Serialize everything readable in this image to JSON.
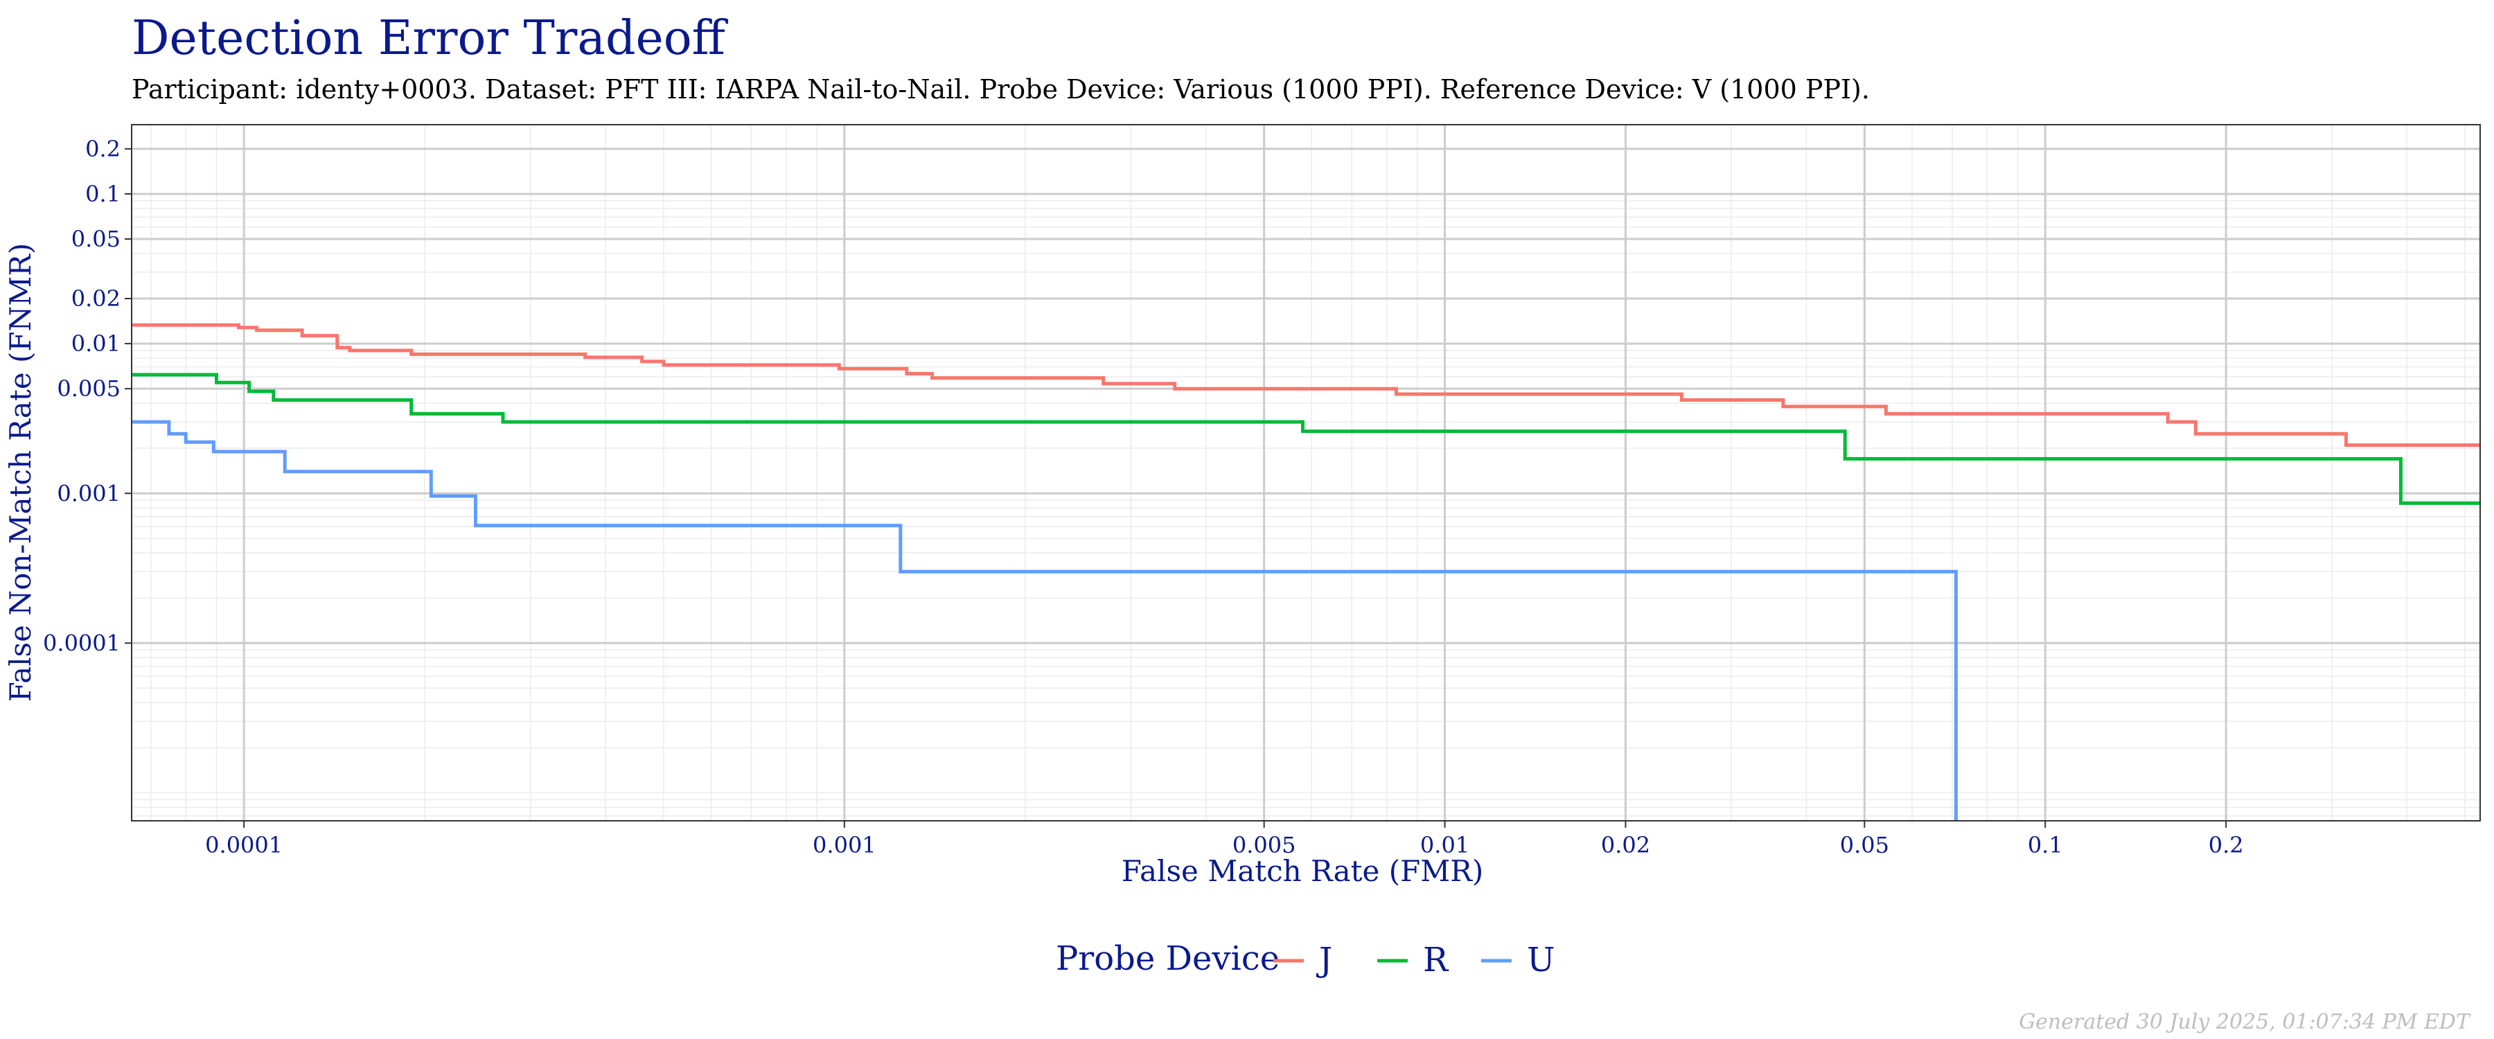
{
  "chart_data": {
    "type": "line",
    "step": true,
    "title": "Detection Error Tradeoff",
    "subtitle": "Participant: identy+0003. Dataset: PFT III: IARPA Nail-to-Nail. Probe Device: Various (1000 PPI). Reference Device: V (1000 PPI).",
    "xlabel": "False Match Rate (FMR)",
    "ylabel": "False Non-Match Rate (FNMR)",
    "xscale": "log",
    "yscale": "log",
    "xlim": [
      6.5e-05,
      0.53
    ],
    "ylim": [
      6.5e-06,
      0.29
    ],
    "xticks": [
      {
        "value": 0.0001,
        "label": "0.0001"
      },
      {
        "value": 0.001,
        "label": "0.001"
      },
      {
        "value": 0.005,
        "label": "0.005"
      },
      {
        "value": 0.01,
        "label": "0.01"
      },
      {
        "value": 0.02,
        "label": "0.02"
      },
      {
        "value": 0.05,
        "label": "0.05"
      },
      {
        "value": 0.1,
        "label": "0.1"
      },
      {
        "value": 0.2,
        "label": "0.2"
      }
    ],
    "yticks": [
      {
        "value": 0.2,
        "label": "0.2"
      },
      {
        "value": 0.1,
        "label": "0.1"
      },
      {
        "value": 0.05,
        "label": "0.05"
      },
      {
        "value": 0.02,
        "label": "0.02"
      },
      {
        "value": 0.01,
        "label": "0.01"
      },
      {
        "value": 0.005,
        "label": "0.005"
      },
      {
        "value": 0.001,
        "label": "0.001"
      },
      {
        "value": 0.0001,
        "label": "0.0001"
      }
    ],
    "grid": true,
    "legend": {
      "title": "Probe Device",
      "position": "bottom"
    },
    "series": [
      {
        "name": "J",
        "color": "#F8766D",
        "points": [
          [
            6.5e-05,
            0.0133
          ],
          [
            9.8e-05,
            0.0128
          ],
          [
            0.000105,
            0.0123
          ],
          [
            0.000125,
            0.0113
          ],
          [
            0.000143,
            0.0094
          ],
          [
            0.00015,
            0.009
          ],
          [
            0.00019,
            0.0085
          ],
          [
            0.00037,
            0.0081
          ],
          [
            0.00046,
            0.0076
          ],
          [
            0.0005,
            0.0072
          ],
          [
            0.00098,
            0.0068
          ],
          [
            0.00127,
            0.0063
          ],
          [
            0.0014,
            0.0059
          ],
          [
            0.0027,
            0.0054
          ],
          [
            0.00355,
            0.005
          ],
          [
            0.0083,
            0.0046
          ],
          [
            0.0248,
            0.0042
          ],
          [
            0.0366,
            0.0038
          ],
          [
            0.0543,
            0.0034
          ],
          [
            0.16,
            0.003
          ],
          [
            0.178,
            0.0025
          ],
          [
            0.317,
            0.0021
          ],
          [
            0.53,
            0.0021
          ]
        ]
      },
      {
        "name": "R",
        "color": "#00BA38",
        "points": [
          [
            6.5e-05,
            0.0062
          ],
          [
            9e-05,
            0.0055
          ],
          [
            0.000102,
            0.0048
          ],
          [
            0.000112,
            0.0042
          ],
          [
            0.00019,
            0.0034
          ],
          [
            0.00027,
            0.003
          ],
          [
            0.0058,
            0.0026
          ],
          [
            0.0464,
            0.0017
          ],
          [
            0.391,
            0.00086
          ],
          [
            0.53,
            0.00086
          ]
        ]
      },
      {
        "name": "U",
        "color": "#619CFF",
        "points": [
          [
            6.5e-05,
            0.003
          ],
          [
            7.5e-05,
            0.0025
          ],
          [
            8e-05,
            0.0022
          ],
          [
            8.9e-05,
            0.0019
          ],
          [
            0.000117,
            0.0014
          ],
          [
            0.000205,
            0.00096
          ],
          [
            0.000243,
            0.00061
          ],
          [
            0.00124,
            0.0003
          ],
          [
            0.071,
            6.5e-06
          ]
        ]
      }
    ]
  },
  "footer": "Generated 30 July 2025, 01:07:34 PM EDT"
}
